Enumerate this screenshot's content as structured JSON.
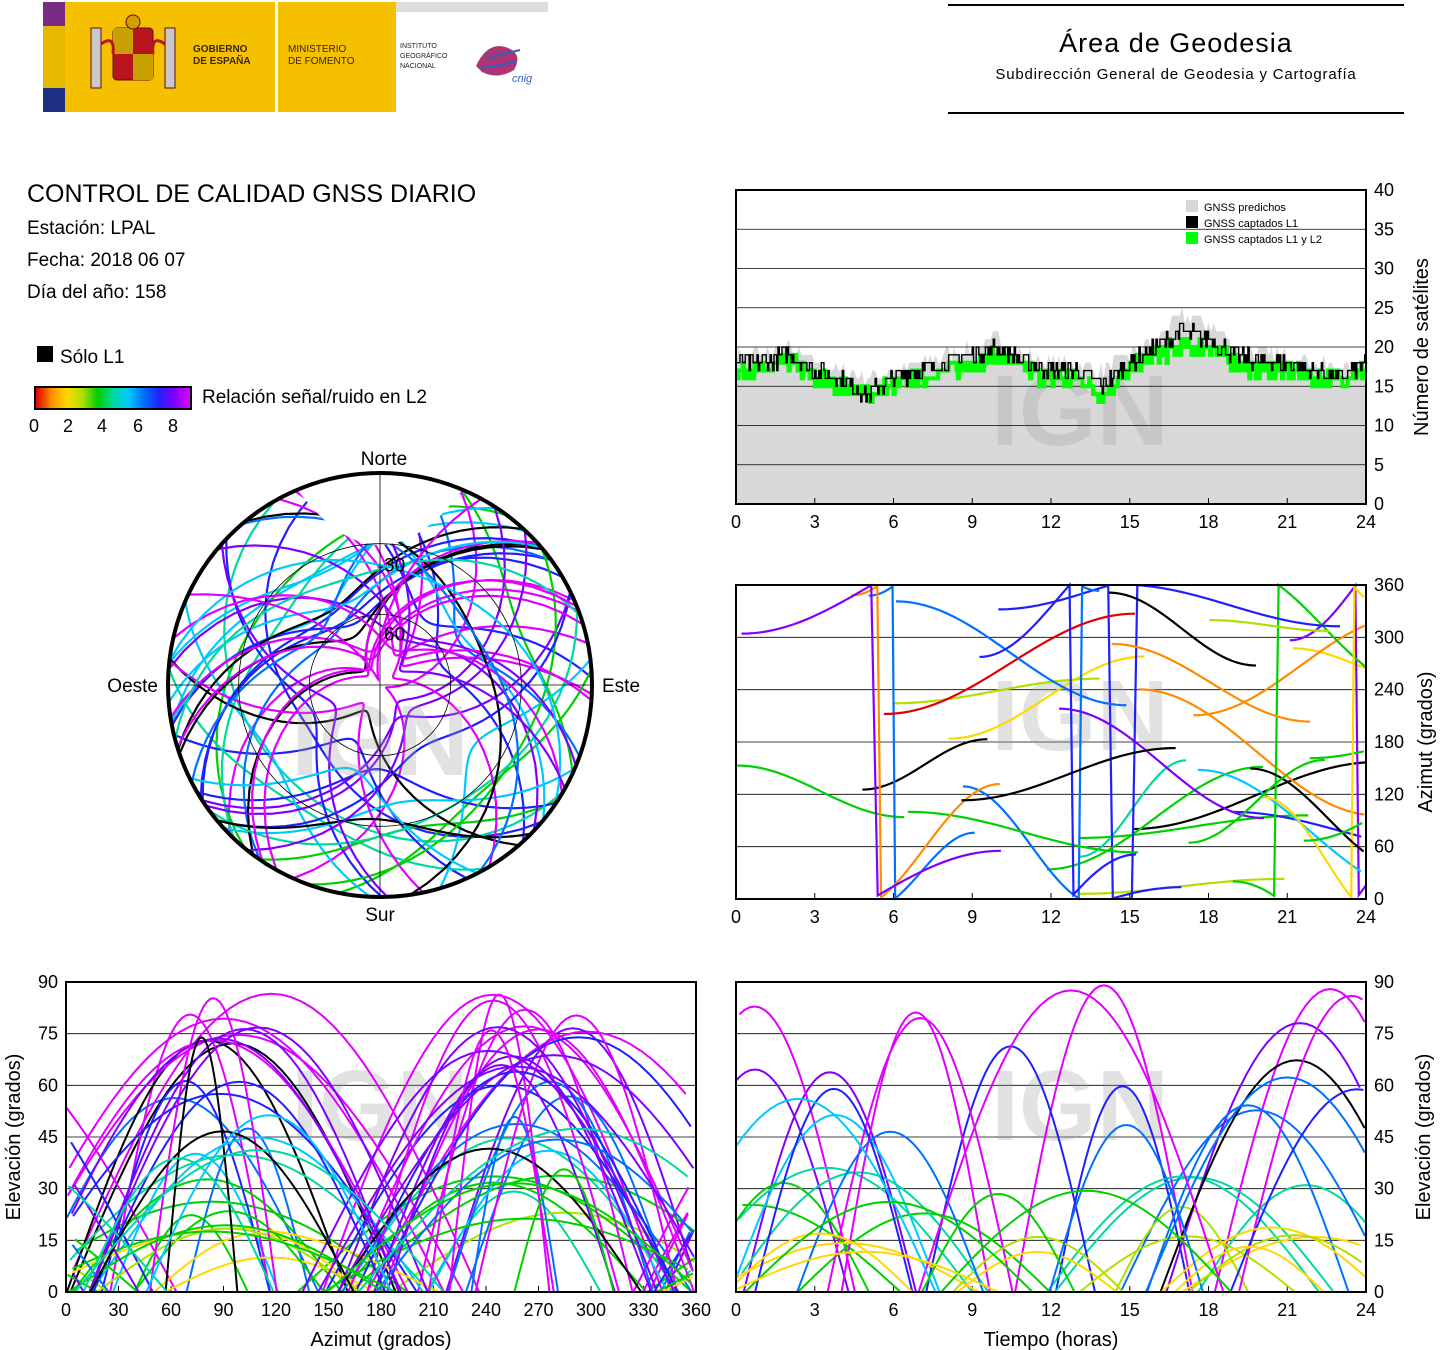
{
  "header": {
    "gov1": "GOBIERNO",
    "gov2": "DE ESPAÑA",
    "min1": "MINISTERIO",
    "min2": "DE FOMENTO",
    "ign1": "INSTITUTO",
    "ign2": "GEOGRÁFICO",
    "ign3": "NACIONAL",
    "cnig": "cnig",
    "area": "Área de Geodesia",
    "sub": "Subdirección General de Geodesia y Cartografía"
  },
  "report": {
    "title": "CONTROL DE CALIDAD GNSS DIARIO",
    "station": "Estación: LPAL",
    "date": "Fecha: 2018 06 07",
    "doy": "Día del año: 158",
    "solo_l1": "Sólo L1",
    "snr_label": "Relación señal/ruido en L2",
    "snr_ticks": [
      "0",
      "2",
      "4",
      "6",
      "8"
    ]
  },
  "watermark": "IGN",
  "colors": {
    "predicted": "#d8d8d8",
    "l1": "#000000",
    "l1l2": "#00ff00",
    "snr_scale": [
      "#e00000",
      "#ff8c00",
      "#ffd800",
      "#b0e000",
      "#00d000",
      "#00d8a0",
      "#00c8ff",
      "#0070ff",
      "#2020ff",
      "#8000ff",
      "#e000ff"
    ]
  },
  "chart_data": [
    {
      "id": "skyplot",
      "type": "scatter",
      "labels": {
        "north": "Norte",
        "south": "Sur",
        "east": "Este",
        "west": "Oeste"
      },
      "rings": [
        "30",
        "60"
      ],
      "note_tracks": "elevation/azimuth tracks of visible satellites, colored by L2 SNR"
    },
    {
      "id": "nsat",
      "type": "area",
      "ylabel": "Número de satélites",
      "xlim": [
        0,
        24
      ],
      "ylim": [
        0,
        40
      ],
      "xticks": [
        "0",
        "3",
        "6",
        "9",
        "12",
        "15",
        "18",
        "21",
        "24"
      ],
      "yticks": [
        "0",
        "5",
        "10",
        "15",
        "20",
        "25",
        "30",
        "35",
        "40"
      ],
      "legend": [
        "GNSS predichos",
        "GNSS captados L1",
        "GNSS captados L1 y L2"
      ],
      "legend_position": "top-right",
      "x": [
        0,
        1,
        2,
        3,
        4,
        5,
        6,
        7,
        8,
        9,
        10,
        11,
        12,
        13,
        14,
        15,
        16,
        17,
        18,
        19,
        20,
        21,
        22,
        23,
        24
      ],
      "series": [
        {
          "name": "GNSS predichos",
          "values": [
            19,
            19,
            20,
            18,
            17,
            16,
            17,
            18,
            19,
            20,
            21,
            19,
            18,
            18,
            17,
            19,
            21,
            24,
            23,
            20,
            19,
            19,
            18,
            17,
            18
          ]
        },
        {
          "name": "GNSS captados L1",
          "values": [
            18,
            18,
            19,
            17,
            16,
            14,
            16,
            17,
            18,
            19,
            20,
            18,
            17,
            17,
            15,
            18,
            20,
            22,
            21,
            19,
            18,
            18,
            17,
            16,
            18
          ]
        },
        {
          "name": "GNSS captados L1 y L2",
          "values": [
            17,
            17,
            18,
            16,
            15,
            14,
            15,
            16,
            17,
            18,
            19,
            17,
            16,
            16,
            14,
            17,
            19,
            20,
            20,
            18,
            17,
            17,
            16,
            16,
            17
          ]
        }
      ]
    },
    {
      "id": "azimuth-time",
      "type": "scatter",
      "ylabel": "Azimut (grados)",
      "xlim": [
        0,
        24
      ],
      "ylim": [
        0,
        360
      ],
      "xticks": [
        "0",
        "3",
        "6",
        "9",
        "12",
        "15",
        "18",
        "21",
        "24"
      ],
      "yticks": [
        "0",
        "60",
        "120",
        "180",
        "240",
        "300",
        "360"
      ]
    },
    {
      "id": "elev-azimuth",
      "type": "scatter",
      "xlabel": "Azimut (grados)",
      "ylabel": "Elevación (grados)",
      "xlim": [
        0,
        360
      ],
      "ylim": [
        0,
        90
      ],
      "xticks": [
        "0",
        "30",
        "60",
        "90",
        "120",
        "150",
        "180",
        "210",
        "240",
        "270",
        "300",
        "330",
        "360"
      ],
      "yticks": [
        "0",
        "15",
        "30",
        "45",
        "60",
        "75",
        "90"
      ]
    },
    {
      "id": "elev-time",
      "type": "scatter",
      "xlabel": "Tiempo (horas)",
      "ylabel": "Elevación (grados)",
      "xlim": [
        0,
        24
      ],
      "ylim": [
        0,
        90
      ],
      "xticks": [
        "0",
        "3",
        "6",
        "9",
        "12",
        "15",
        "18",
        "21",
        "24"
      ],
      "yticks": [
        "0",
        "15",
        "30",
        "45",
        "60",
        "75",
        "90"
      ]
    }
  ]
}
